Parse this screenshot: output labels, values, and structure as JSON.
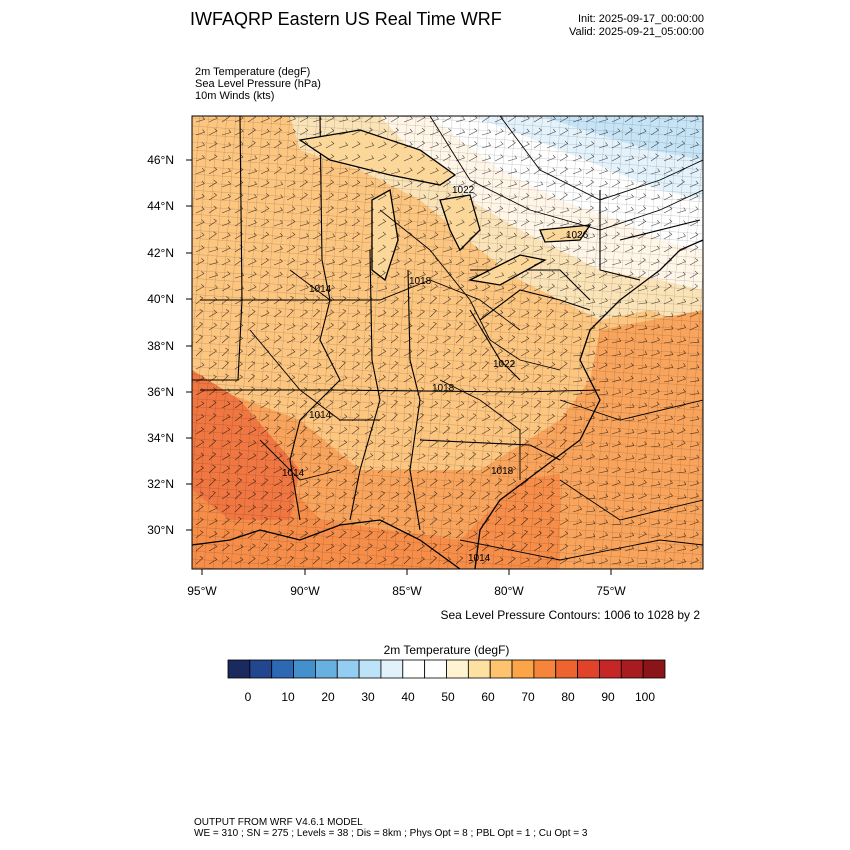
{
  "title": "IWFAQRP Eastern US Real Time WRF",
  "init": "Init: 2025-09-17_00:00:00",
  "valid": "Valid: 2025-09-21_05:00:00",
  "fields": [
    "2m Temperature   (degF)",
    "Sea Level Pressure   (hPa)",
    "10m Winds   (kts)"
  ],
  "lat_labels": [
    "46°N",
    "44°N",
    "42°N",
    "40°N",
    "38°N",
    "36°N",
    "34°N",
    "32°N",
    "30°N"
  ],
  "lon_labels": [
    "95°W",
    "90°W",
    "85°W",
    "80°W",
    "75°W"
  ],
  "contour_note": "Sea Level Pressure Contours: 1006 to 1028 by 2",
  "isobar_labels": [
    "1022",
    "1026",
    "1018",
    "1014",
    "1022",
    "1018",
    "1014",
    "1014",
    "1018",
    "1014"
  ],
  "colorbar": {
    "title": "2m Temperature  (degF)",
    "ticks": [
      "0",
      "10",
      "20",
      "30",
      "40",
      "50",
      "60",
      "70",
      "80",
      "90",
      "100"
    ],
    "colors": [
      "#1a2a5e",
      "#22478f",
      "#2d68b3",
      "#4390cc",
      "#68b0e0",
      "#93cdf2",
      "#bde3f8",
      "#e2f2fb",
      "#ffffff",
      "#ffffff",
      "#fff3d2",
      "#fee0a0",
      "#fdc36e",
      "#fba448",
      "#f5853a",
      "#ee6430",
      "#e0432a",
      "#c62626",
      "#a81b1e",
      "#8b1418"
    ],
    "range": [
      0,
      100
    ]
  },
  "footer": [
    "OUTPUT FROM WRF V4.6.1 MODEL",
    "WE = 310 ; SN = 275 ; Levels = 38 ; Dis = 8km ; Phys Opt = 8 ; PBL Opt = 1 ; Cu Opt = 3"
  ]
}
